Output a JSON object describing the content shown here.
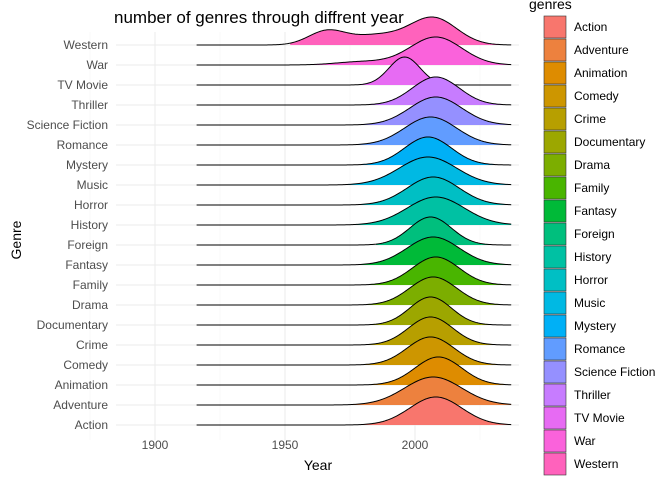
{
  "chart_data": {
    "type": "ridgeline",
    "title": "number of genres through diffrent year",
    "xlabel": "Year",
    "ylabel": "Genre",
    "xlim": [
      1885,
      2040
    ],
    "xticks": [
      1900,
      1950,
      2000
    ],
    "grid": true,
    "legend_title": "genres",
    "legend_position": "right",
    "categories": [
      "Action",
      "Adventure",
      "Animation",
      "Comedy",
      "Crime",
      "Documentary",
      "Drama",
      "Family",
      "Fantasy",
      "Foreign",
      "History",
      "Horror",
      "Music",
      "Mystery",
      "Romance",
      "Science Fiction",
      "Thriller",
      "TV Movie",
      "War",
      "Western"
    ],
    "series": [
      {
        "name": "Action",
        "color": "#F8766D",
        "range": [
          1916,
          2037
        ],
        "fill_from": 1972,
        "components": [
          [
            2008,
            10,
            1.0
          ]
        ]
      },
      {
        "name": "Adventure",
        "color": "#ED813E",
        "range": [
          1916,
          2037
        ],
        "fill_from": 1970,
        "components": [
          [
            2007,
            11,
            1.0
          ]
        ]
      },
      {
        "name": "Animation",
        "color": "#DE8C00",
        "range": [
          1916,
          2037
        ],
        "fill_from": 1978,
        "components": [
          [
            2009,
            9,
            1.0
          ]
        ]
      },
      {
        "name": "Comedy",
        "color": "#CD9600",
        "range": [
          1916,
          2037
        ],
        "fill_from": 1978,
        "components": [
          [
            2006,
            9,
            1.0
          ]
        ]
      },
      {
        "name": "Crime",
        "color": "#B79F00",
        "range": [
          1916,
          2037
        ],
        "fill_from": 1975,
        "components": [
          [
            2006,
            8.5,
            1.0
          ]
        ]
      },
      {
        "name": "Documentary",
        "color": "#9CA700",
        "range": [
          1916,
          2037
        ],
        "fill_from": 1980,
        "components": [
          [
            2006,
            8,
            1.0
          ]
        ]
      },
      {
        "name": "Drama",
        "color": "#7CAE00",
        "range": [
          1916,
          2037
        ],
        "fill_from": 1980,
        "components": [
          [
            2007,
            9,
            1.0
          ]
        ]
      },
      {
        "name": "Family",
        "color": "#49B500",
        "range": [
          1916,
          2037
        ],
        "fill_from": 1982,
        "components": [
          [
            2008,
            9,
            1.0
          ]
        ]
      },
      {
        "name": "Fantasy",
        "color": "#00BA38",
        "range": [
          1916,
          2037
        ],
        "fill_from": 1975,
        "components": [
          [
            2007,
            10,
            1.0
          ]
        ]
      },
      {
        "name": "Foreign",
        "color": "#00BF7D",
        "range": [
          1916,
          2037
        ],
        "fill_from": 1985,
        "components": [
          [
            2006,
            8,
            1.0
          ]
        ]
      },
      {
        "name": "History",
        "color": "#00C1A3",
        "range": [
          1916,
          2037
        ],
        "fill_from": 1950,
        "components": [
          [
            2008,
            11,
            1.0
          ]
        ]
      },
      {
        "name": "Horror",
        "color": "#00BFC4",
        "range": [
          1916,
          2037
        ],
        "fill_from": 1975,
        "components": [
          [
            2007,
            10,
            1.0
          ]
        ]
      },
      {
        "name": "Music",
        "color": "#00B9E3",
        "range": [
          1916,
          2037
        ],
        "fill_from": 1960,
        "components": [
          [
            2005,
            11,
            1.0
          ]
        ]
      },
      {
        "name": "Mystery",
        "color": "#00B0F6",
        "range": [
          1916,
          2037
        ],
        "fill_from": 1975,
        "components": [
          [
            2005,
            9,
            1.0
          ]
        ]
      },
      {
        "name": "Romance",
        "color": "#619CFF",
        "range": [
          1916,
          2037
        ],
        "fill_from": 1975,
        "components": [
          [
            2006,
            10,
            1.0
          ]
        ]
      },
      {
        "name": "Science Fiction",
        "color": "#9590FF",
        "range": [
          1916,
          2037
        ],
        "fill_from": 1975,
        "components": [
          [
            2008,
            10,
            1.0
          ]
        ]
      },
      {
        "name": "Thriller",
        "color": "#C77CFF",
        "range": [
          1916,
          2037
        ],
        "fill_from": 1980,
        "components": [
          [
            2008,
            9,
            1.0
          ]
        ]
      },
      {
        "name": "TV Movie",
        "color": "#E76BF3",
        "range": [
          1916,
          2037
        ],
        "fill_from": 1975,
        "components": [
          [
            1996,
            6,
            1.0
          ]
        ]
      },
      {
        "name": "War",
        "color": "#FA62DB",
        "range": [
          1916,
          2037
        ],
        "fill_from": 1960,
        "components": [
          [
            2008,
            10,
            1.0
          ],
          [
            1980,
            10,
            0.12
          ]
        ]
      },
      {
        "name": "Western",
        "color": "#FF62BC",
        "range": [
          1916,
          2037
        ],
        "fill_from": 1952,
        "components": [
          [
            2007,
            9,
            1.0
          ],
          [
            1966,
            7,
            0.5
          ],
          [
            1985,
            10,
            0.35
          ]
        ]
      }
    ]
  }
}
